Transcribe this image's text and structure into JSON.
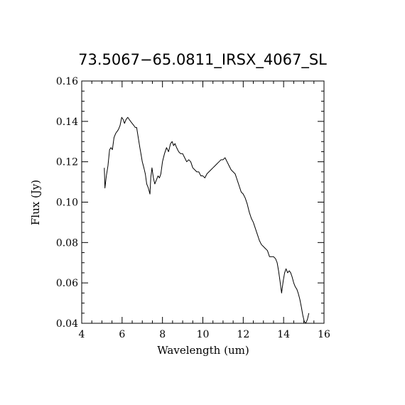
{
  "chart_data": {
    "type": "line",
    "title": "73.5067−65.0811_IRSX_4067_SL",
    "xlabel": "Wavelength (um)",
    "ylabel": "Flux (Jy)",
    "xlim": [
      4,
      16
    ],
    "ylim": [
      0.04,
      0.16
    ],
    "xticks": [
      4,
      6,
      8,
      10,
      12,
      14,
      16
    ],
    "xtick_labels": [
      "4",
      "6",
      "8",
      "10",
      "12",
      "14",
      "16"
    ],
    "yticks": [
      0.04,
      0.06,
      0.08,
      0.1,
      0.12,
      0.14,
      0.16
    ],
    "ytick_labels": [
      "0.04",
      "0.06",
      "0.08",
      "0.10",
      "0.12",
      "0.14",
      "0.16"
    ],
    "grid": false,
    "legend": "none",
    "series": [
      {
        "x": [
          5.12,
          5.15,
          5.22,
          5.3,
          5.38,
          5.45,
          5.52,
          5.6,
          5.68,
          5.75,
          5.82,
          5.9,
          5.98,
          6.05,
          6.12,
          6.2,
          6.28,
          6.35,
          6.42,
          6.5,
          6.58,
          6.65,
          6.72,
          6.8,
          6.88,
          6.95,
          7.0,
          7.08,
          7.15,
          7.22,
          7.3,
          7.38,
          7.42,
          7.48,
          7.55,
          7.62,
          7.7,
          7.78,
          7.85,
          7.92,
          8.0,
          8.1,
          8.2,
          8.3,
          8.4,
          8.48,
          8.55,
          8.62,
          8.7,
          8.8,
          8.9,
          9.0,
          9.1,
          9.2,
          9.3,
          9.4,
          9.5,
          9.6,
          9.7,
          9.8,
          9.9,
          10.0,
          10.1,
          10.2,
          10.3,
          10.4,
          10.5,
          10.6,
          10.7,
          10.8,
          10.9,
          11.0,
          11.1,
          11.2,
          11.3,
          11.4,
          11.5,
          11.6,
          11.7,
          11.8,
          11.9,
          12.0,
          12.1,
          12.2,
          12.3,
          12.4,
          12.5,
          12.6,
          12.7,
          12.8,
          12.9,
          13.0,
          13.1,
          13.2,
          13.3,
          13.4,
          13.5,
          13.6,
          13.68,
          13.75,
          13.82,
          13.9,
          13.98,
          14.05,
          14.12,
          14.2,
          14.28,
          14.35,
          14.42,
          14.5,
          14.58,
          14.65,
          14.72,
          14.8,
          14.88,
          14.95,
          15.02,
          15.1,
          15.18,
          15.25
        ],
        "y": [
          0.117,
          0.107,
          0.113,
          0.118,
          0.126,
          0.127,
          0.126,
          0.132,
          0.134,
          0.135,
          0.136,
          0.138,
          0.142,
          0.141,
          0.139,
          0.141,
          0.142,
          0.141,
          0.14,
          0.139,
          0.138,
          0.137,
          0.137,
          0.132,
          0.127,
          0.123,
          0.12,
          0.117,
          0.114,
          0.109,
          0.107,
          0.104,
          0.112,
          0.117,
          0.112,
          0.109,
          0.111,
          0.113,
          0.112,
          0.114,
          0.12,
          0.124,
          0.127,
          0.125,
          0.129,
          0.13,
          0.128,
          0.129,
          0.127,
          0.125,
          0.124,
          0.124,
          0.122,
          0.12,
          0.121,
          0.12,
          0.117,
          0.116,
          0.115,
          0.115,
          0.113,
          0.113,
          0.112,
          0.114,
          0.115,
          0.116,
          0.117,
          0.118,
          0.119,
          0.12,
          0.121,
          0.121,
          0.122,
          0.12,
          0.118,
          0.116,
          0.115,
          0.114,
          0.111,
          0.108,
          0.105,
          0.104,
          0.102,
          0.099,
          0.095,
          0.092,
          0.09,
          0.087,
          0.084,
          0.081,
          0.079,
          0.078,
          0.077,
          0.076,
          0.073,
          0.073,
          0.073,
          0.072,
          0.07,
          0.066,
          0.061,
          0.055,
          0.061,
          0.065,
          0.067,
          0.065,
          0.066,
          0.065,
          0.063,
          0.06,
          0.058,
          0.057,
          0.055,
          0.052,
          0.048,
          0.044,
          0.041,
          0.04,
          0.042,
          0.045
        ]
      }
    ]
  }
}
